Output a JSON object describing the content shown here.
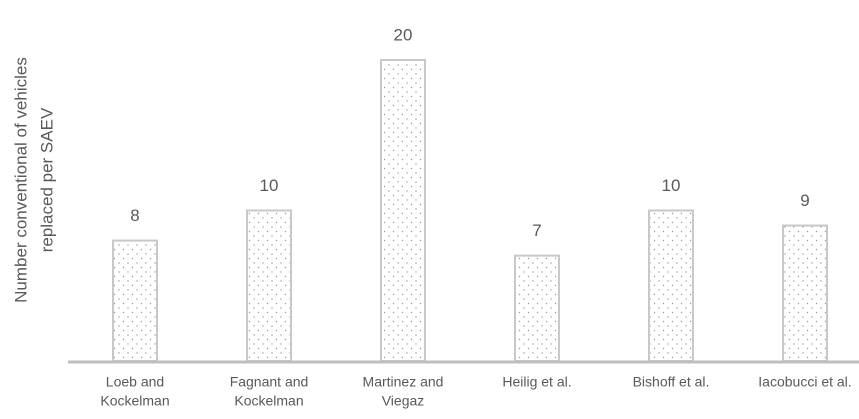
{
  "chart_data": {
    "type": "bar",
    "ylabel": [
      "Number conventional of vehicles",
      "replaced per SAEV"
    ],
    "categories": [
      [
        "Loeb and",
        "Kockelman"
      ],
      [
        "Fagnant and",
        "Kockelman"
      ],
      [
        "Martinez and",
        "Viegaz"
      ],
      [
        "Heilig et al."
      ],
      [
        "Bishoff et al."
      ],
      [
        "Iacobucci et al."
      ]
    ],
    "values": [
      8,
      10,
      20,
      7,
      10,
      9
    ],
    "color": "#c8c8c8",
    "ylim": [
      0,
      20
    ],
    "grid": false
  }
}
